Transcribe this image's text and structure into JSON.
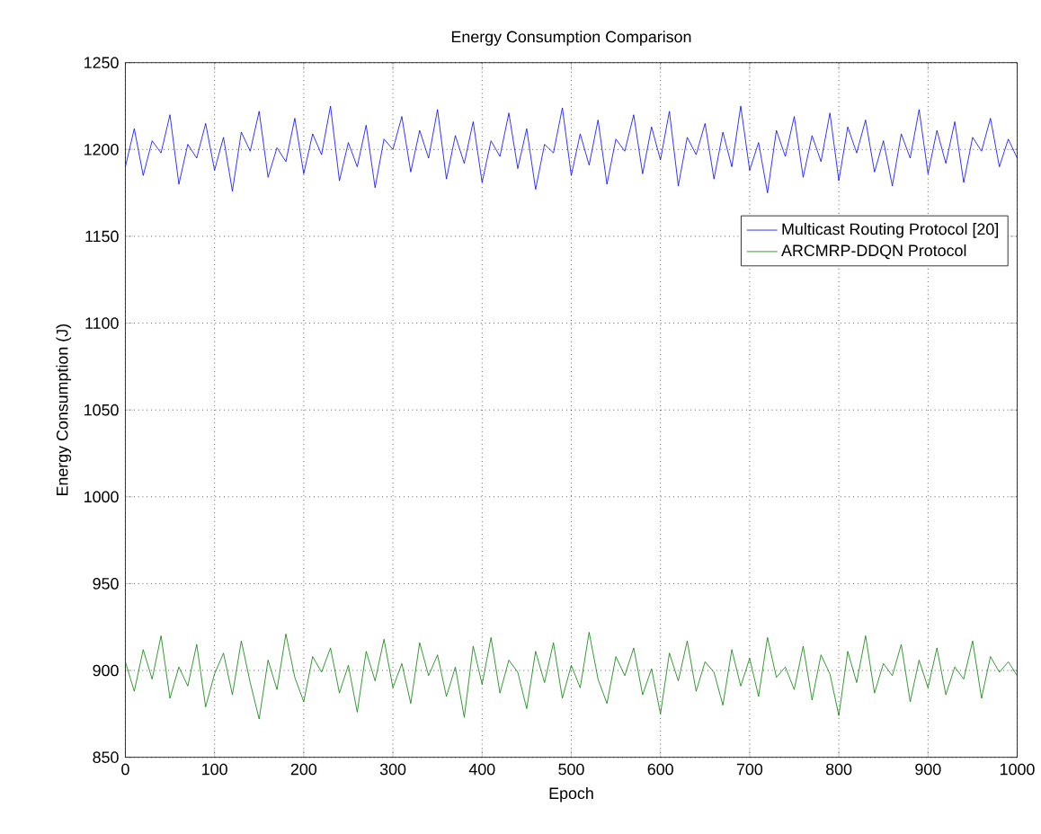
{
  "chart_data": {
    "type": "line",
    "title": "Energy Consumption Comparison",
    "xlabel": "Epoch",
    "ylabel": "Energy Consumption (J)",
    "xlim": [
      0,
      1000
    ],
    "ylim": [
      850,
      1250
    ],
    "xticks": [
      0,
      100,
      200,
      300,
      400,
      500,
      600,
      700,
      800,
      900,
      1000
    ],
    "yticks": [
      850,
      900,
      950,
      1000,
      1050,
      1100,
      1150,
      1200,
      1250
    ],
    "grid": true,
    "legend": "top right",
    "x": [
      0,
      10,
      20,
      30,
      40,
      50,
      60,
      70,
      80,
      90,
      100,
      110,
      120,
      130,
      140,
      150,
      160,
      170,
      180,
      190,
      200,
      210,
      220,
      230,
      240,
      250,
      260,
      270,
      280,
      290,
      300,
      310,
      320,
      330,
      340,
      350,
      360,
      370,
      380,
      390,
      400,
      410,
      420,
      430,
      440,
      450,
      460,
      470,
      480,
      490,
      500,
      510,
      520,
      530,
      540,
      550,
      560,
      570,
      580,
      590,
      600,
      610,
      620,
      630,
      640,
      650,
      660,
      670,
      680,
      690,
      700,
      710,
      720,
      730,
      740,
      750,
      760,
      770,
      780,
      790,
      800,
      810,
      820,
      830,
      840,
      850,
      860,
      870,
      880,
      890,
      900,
      910,
      920,
      930,
      940,
      950,
      960,
      970,
      980,
      990,
      1000
    ],
    "series": [
      {
        "name": "Multicast Routing Protocol [20]",
        "color": "#0000ff",
        "values": [
          1190,
          1212,
          1185,
          1205,
          1198,
          1220,
          1180,
          1203,
          1195,
          1215,
          1188,
          1207,
          1176,
          1210,
          1199,
          1222,
          1184,
          1201,
          1193,
          1218,
          1186,
          1209,
          1197,
          1225,
          1182,
          1204,
          1190,
          1214,
          1178,
          1206,
          1200,
          1219,
          1187,
          1211,
          1195,
          1223,
          1183,
          1208,
          1192,
          1216,
          1181,
          1205,
          1196,
          1221,
          1189,
          1212,
          1177,
          1203,
          1198,
          1224,
          1185,
          1209,
          1191,
          1217,
          1180,
          1206,
          1199,
          1220,
          1186,
          1213,
          1194,
          1222,
          1179,
          1207,
          1197,
          1215,
          1183,
          1210,
          1190,
          1225,
          1188,
          1204,
          1175,
          1211,
          1196,
          1219,
          1184,
          1208,
          1193,
          1221,
          1182,
          1213,
          1198,
          1217,
          1187,
          1205,
          1179,
          1209,
          1195,
          1223,
          1186,
          1211,
          1192,
          1216,
          1181,
          1207,
          1199,
          1218,
          1190,
          1206,
          1195
        ]
      },
      {
        "name": "ARCMRP-DDQN Protocol",
        "color": "#008000",
        "values": [
          905,
          888,
          912,
          895,
          920,
          884,
          902,
          891,
          915,
          879,
          898,
          910,
          886,
          917,
          893,
          872,
          906,
          889,
          921,
          896,
          882,
          908,
          899,
          913,
          887,
          903,
          876,
          911,
          894,
          918,
          890,
          904,
          881,
          916,
          897,
          909,
          885,
          902,
          873,
          914,
          892,
          919,
          887,
          906,
          899,
          878,
          911,
          893,
          916,
          884,
          903,
          890,
          922,
          895,
          881,
          908,
          897,
          913,
          886,
          901,
          875,
          910,
          894,
          917,
          888,
          905,
          899,
          880,
          912,
          891,
          907,
          885,
          919,
          896,
          902,
          889,
          914,
          883,
          909,
          898,
          874,
          911,
          893,
          920,
          887,
          904,
          897,
          915,
          882,
          906,
          890,
          913,
          886,
          902,
          895,
          917,
          884,
          908,
          899,
          905,
          897
        ]
      }
    ]
  }
}
